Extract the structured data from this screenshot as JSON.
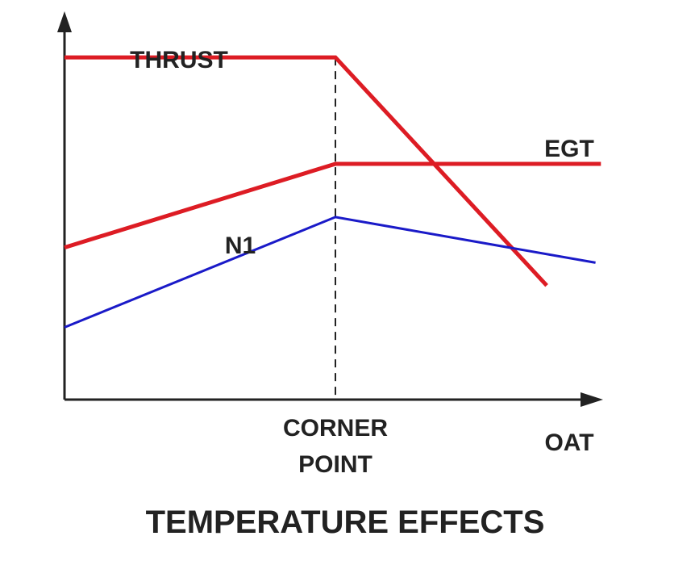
{
  "chart_data": {
    "type": "line",
    "title": "TEMPERATURE EFFECTS",
    "xlabel": "OAT",
    "ylabel": "",
    "annotations": [
      {
        "text_lines": [
          "CORNER",
          "POINT"
        ],
        "x": 0.5
      }
    ],
    "xlim": [
      0,
      1
    ],
    "ylim": [
      0,
      1
    ],
    "grid": false,
    "series": [
      {
        "name": "THRUST",
        "color": "#dd1c24",
        "points": [
          [
            0.0,
            0.9
          ],
          [
            0.5,
            0.9
          ],
          [
            0.89,
            0.3
          ]
        ]
      },
      {
        "name": "EGT",
        "color": "#dd1c24",
        "points": [
          [
            0.0,
            0.4
          ],
          [
            0.5,
            0.62
          ],
          [
            0.99,
            0.62
          ]
        ]
      },
      {
        "name": "N1",
        "color": "#1a1ac8",
        "points": [
          [
            0.0,
            0.19
          ],
          [
            0.5,
            0.48
          ],
          [
            0.98,
            0.36
          ]
        ]
      }
    ]
  }
}
